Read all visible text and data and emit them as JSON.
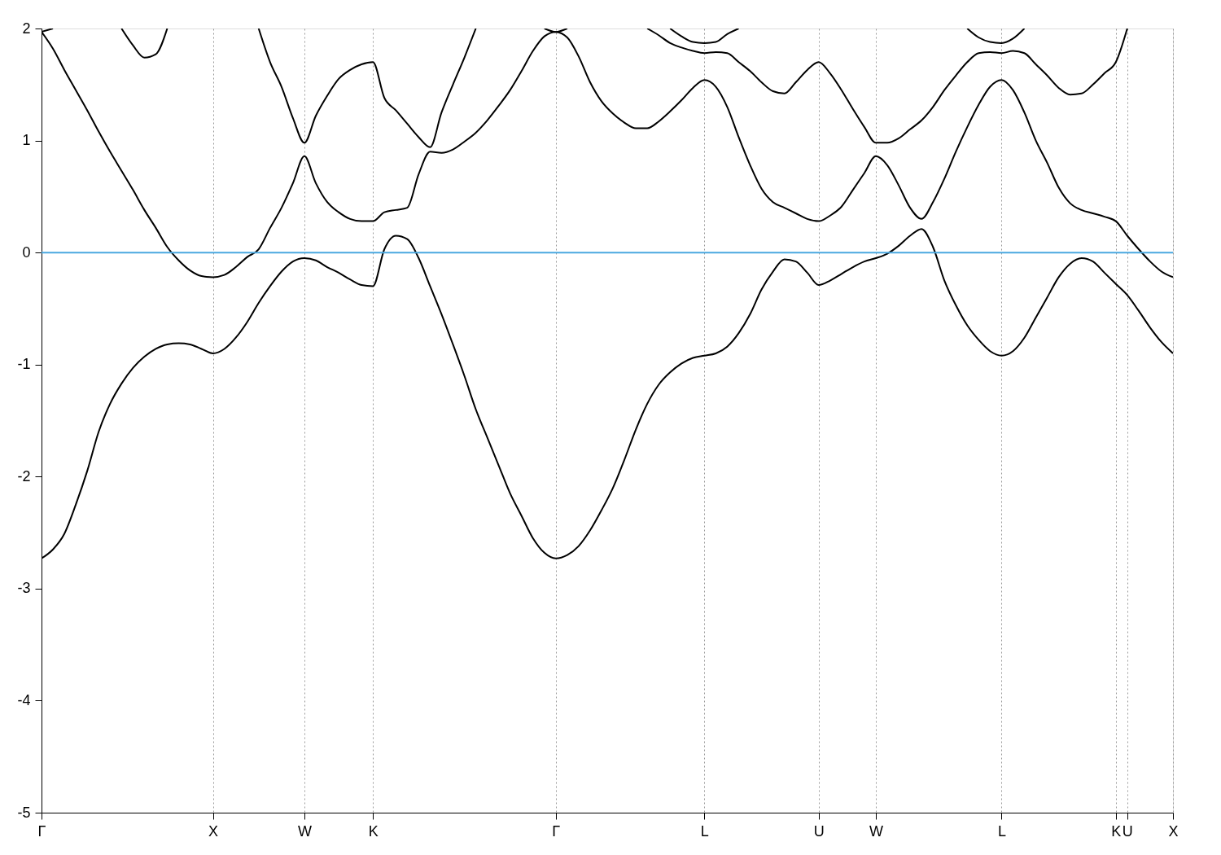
{
  "chart_data": {
    "type": "line",
    "categories": [
      "Γ",
      null,
      null,
      null,
      null,
      null,
      null,
      null,
      null,
      null,
      null,
      null,
      null,
      null,
      null,
      "X",
      null,
      null,
      null,
      null,
      null,
      null,
      null,
      "W",
      null,
      null,
      null,
      null,
      null,
      "K",
      null,
      null,
      null,
      null,
      null,
      null,
      null,
      null,
      null,
      null,
      null,
      null,
      null,
      null,
      null,
      "Γ",
      null,
      null,
      null,
      null,
      null,
      null,
      null,
      null,
      null,
      null,
      null,
      null,
      "L",
      null,
      null,
      null,
      null,
      null,
      null,
      null,
      null,
      null,
      "U",
      null,
      null,
      null,
      null,
      "W",
      null,
      null,
      null,
      null,
      null,
      null,
      null,
      null,
      null,
      null,
      "L",
      null,
      null,
      null,
      null,
      null,
      null,
      null,
      null,
      null,
      "K",
      "U",
      null,
      null,
      null,
      "X"
    ],
    "ylim": [
      -5,
      2
    ],
    "yticks": [
      -5,
      -4,
      -3,
      -2,
      -1,
      0,
      1,
      2
    ],
    "grid": "x",
    "ref_lines": [
      {
        "axis": "y",
        "value": 0,
        "color": "#4aa8e0"
      }
    ],
    "series": [
      {
        "color": "#000000",
        "values": [
          -2.73,
          -2.65,
          -2.51,
          -2.25,
          -1.95,
          -1.6,
          -1.35,
          -1.17,
          -1.03,
          -0.93,
          -0.86,
          -0.82,
          -0.81,
          -0.82,
          -0.86,
          -0.9,
          -0.86,
          -0.76,
          -0.62,
          -0.45,
          -0.3,
          -0.17,
          -0.08,
          -0.05,
          -0.07,
          -0.13,
          -0.18,
          -0.24,
          -0.29,
          -0.3,
          0.03,
          0.15,
          0.12,
          -0.05,
          -0.3,
          -0.55,
          -0.82,
          -1.1,
          -1.4,
          -1.65,
          -1.9,
          -2.15,
          -2.35,
          -2.55,
          -2.68,
          -2.73,
          -2.7,
          -2.62,
          -2.48,
          -2.3,
          -2.1,
          -1.85,
          -1.58,
          -1.35,
          -1.18,
          -1.07,
          -0.99,
          -0.94,
          -0.92,
          -0.9,
          -0.84,
          -0.72,
          -0.55,
          -0.33,
          -0.17,
          -0.06,
          -0.08,
          -0.18,
          -0.29,
          -0.25,
          -0.19,
          -0.13,
          -0.08,
          -0.05,
          -0.01,
          0.06,
          0.15,
          0.21,
          0.05,
          -0.25,
          -0.47,
          -0.65,
          -0.78,
          -0.88,
          -0.92,
          -0.88,
          -0.76,
          -0.58,
          -0.4,
          -0.22,
          -0.1,
          -0.05,
          -0.08,
          -0.18,
          -0.28,
          -0.38,
          -0.52,
          -0.67,
          -0.8,
          -0.9
        ]
      },
      {
        "color": "#000000",
        "values": [
          1.97,
          1.82,
          1.63,
          1.45,
          1.27,
          1.08,
          0.9,
          0.73,
          0.56,
          0.38,
          0.22,
          0.05,
          -0.07,
          -0.16,
          -0.21,
          -0.22,
          -0.2,
          -0.13,
          -0.04,
          0.03,
          0.22,
          0.4,
          0.62,
          0.86,
          0.62,
          0.45,
          0.36,
          0.3,
          0.28,
          0.28,
          0.36,
          0.38,
          0.4,
          0.7,
          0.9,
          0.89,
          0.92,
          0.99,
          1.07,
          1.18,
          1.31,
          1.45,
          1.62,
          1.8,
          1.93,
          1.97,
          1.92,
          1.75,
          1.52,
          1.35,
          1.24,
          1.16,
          1.11,
          1.11,
          1.17,
          1.26,
          1.36,
          1.47,
          1.54,
          1.48,
          1.3,
          1.03,
          0.78,
          0.57,
          0.45,
          0.4,
          0.35,
          0.3,
          0.28,
          0.33,
          0.41,
          0.56,
          0.71,
          0.86,
          0.78,
          0.6,
          0.4,
          0.3,
          0.45,
          0.66,
          0.9,
          1.12,
          1.32,
          1.48,
          1.54,
          1.45,
          1.25,
          1.0,
          0.8,
          0.58,
          0.44,
          0.38,
          0.35,
          0.32,
          0.28,
          0.15,
          0.03,
          -0.08,
          -0.17,
          -0.22
        ]
      },
      {
        "color": "#000000",
        "values": [
          1.97,
          2,
          null,
          null,
          null,
          null,
          null,
          null,
          null,
          null,
          null,
          null,
          null,
          null,
          null,
          null,
          null,
          null,
          null,
          null,
          null,
          null,
          null,
          null,
          null,
          null,
          null,
          null,
          null,
          null,
          null,
          null,
          null,
          null,
          null,
          null,
          null,
          null,
          null,
          null,
          null,
          null,
          null,
          null,
          null,
          null,
          null,
          null,
          null,
          null,
          null,
          null,
          null,
          null,
          null,
          null,
          null,
          null,
          null,
          null,
          null,
          null,
          null,
          null,
          null,
          null,
          null,
          null,
          null,
          null,
          null,
          null,
          null,
          null,
          null,
          null,
          null,
          null,
          null,
          null,
          null,
          null,
          null,
          null,
          null,
          null,
          null,
          null,
          null,
          null,
          null,
          null,
          null,
          null,
          null,
          null,
          null,
          null,
          null,
          null
        ]
      },
      {
        "color": "#000000",
        "values": [
          null,
          null,
          null,
          null,
          null,
          null,
          null,
          2,
          1.85,
          1.74,
          1.77,
          2,
          null,
          null,
          null,
          null,
          null,
          null,
          null,
          null,
          null,
          null,
          null,
          null,
          null,
          null,
          null,
          null,
          null,
          null,
          null,
          null,
          null,
          null,
          null,
          null,
          null,
          null,
          null,
          null,
          null,
          null,
          null,
          null,
          null,
          null,
          null,
          null,
          null,
          null,
          null,
          null,
          null,
          null,
          null,
          null,
          null,
          null,
          null,
          null,
          null,
          null,
          null,
          null,
          null,
          null,
          null,
          null,
          null,
          null,
          null,
          null,
          null,
          null,
          null,
          null,
          null,
          null,
          null,
          null,
          null,
          null,
          null,
          null,
          null,
          null,
          null,
          null,
          null,
          null,
          null,
          null,
          null,
          null,
          null,
          null,
          null,
          null,
          null,
          null
        ]
      },
      {
        "color": "#000000",
        "values": [
          null,
          null,
          null,
          null,
          null,
          null,
          null,
          null,
          null,
          null,
          null,
          null,
          null,
          null,
          null,
          null,
          null,
          null,
          null,
          2,
          1.7,
          1.48,
          1.2,
          0.98,
          1.22,
          1.4,
          1.55,
          1.63,
          1.68,
          1.7,
          1.38,
          1.27,
          1.15,
          1.03,
          0.94,
          1.25,
          1.5,
          1.74,
          2,
          null,
          null,
          null,
          null,
          null,
          null,
          null,
          null,
          null,
          null,
          null,
          null,
          null,
          null,
          null,
          null,
          null,
          null,
          null,
          null,
          null,
          null,
          null,
          null,
          null,
          null,
          null,
          null,
          null,
          null,
          null,
          null,
          null,
          null,
          null,
          null,
          null,
          null,
          null,
          null,
          null,
          null,
          null,
          null,
          null,
          null,
          null,
          null,
          null,
          null,
          null,
          null,
          null,
          null,
          null,
          null,
          null,
          null,
          null,
          null,
          null
        ]
      },
      {
        "color": "#000000",
        "values": [
          null,
          null,
          null,
          null,
          null,
          null,
          null,
          null,
          null,
          null,
          null,
          null,
          null,
          null,
          null,
          null,
          null,
          null,
          null,
          null,
          null,
          null,
          null,
          null,
          null,
          null,
          null,
          null,
          null,
          null,
          null,
          null,
          null,
          null,
          null,
          null,
          null,
          null,
          null,
          null,
          null,
          null,
          null,
          null,
          2,
          1.97,
          2,
          null,
          null,
          null,
          null,
          null,
          null,
          null,
          null,
          null,
          null,
          null,
          null,
          null,
          null,
          null,
          null,
          null,
          null,
          null,
          null,
          null,
          null,
          null,
          null,
          null,
          null,
          null,
          null,
          null,
          null,
          null,
          null,
          null,
          null,
          null,
          null,
          null,
          null,
          null,
          null,
          null,
          null,
          null,
          null,
          null,
          null,
          null,
          null,
          null,
          null,
          null,
          null,
          null
        ]
      },
      {
        "color": "#000000",
        "values": [
          null,
          null,
          null,
          null,
          null,
          null,
          null,
          null,
          null,
          null,
          null,
          null,
          null,
          null,
          null,
          null,
          null,
          null,
          null,
          null,
          null,
          null,
          null,
          null,
          null,
          null,
          null,
          null,
          null,
          null,
          null,
          null,
          null,
          null,
          null,
          null,
          null,
          null,
          null,
          null,
          null,
          null,
          null,
          null,
          null,
          null,
          null,
          null,
          null,
          null,
          null,
          null,
          null,
          2,
          1.94,
          1.87,
          1.83,
          1.8,
          1.78,
          1.79,
          1.78,
          1.7,
          1.62,
          1.52,
          1.44,
          1.42,
          1.52,
          1.63,
          1.7,
          1.6,
          1.45,
          1.28,
          1.12,
          0.98,
          0.98,
          1.02,
          1.1,
          1.18,
          1.3,
          1.45,
          1.58,
          1.7,
          1.78,
          1.79,
          1.78,
          1.8,
          1.78,
          1.68,
          1.58,
          1.47,
          1.41,
          1.42,
          1.5,
          1.6,
          1.7,
          2,
          null,
          null,
          null,
          null
        ]
      },
      {
        "color": "#000000",
        "values": [
          null,
          null,
          null,
          null,
          null,
          null,
          null,
          null,
          null,
          null,
          null,
          null,
          null,
          null,
          null,
          null,
          null,
          null,
          null,
          null,
          null,
          null,
          null,
          null,
          null,
          null,
          null,
          null,
          null,
          null,
          null,
          null,
          null,
          null,
          null,
          null,
          null,
          null,
          null,
          null,
          null,
          null,
          null,
          null,
          null,
          null,
          null,
          null,
          null,
          null,
          null,
          null,
          null,
          null,
          null,
          2,
          1.93,
          1.88,
          1.87,
          1.88,
          1.95,
          2,
          null,
          null,
          null,
          null,
          null,
          null,
          null,
          null,
          null,
          null,
          null,
          null,
          null,
          null,
          null,
          null,
          null,
          null,
          null,
          null,
          null,
          null,
          null,
          null,
          null,
          null,
          null,
          null,
          null,
          null,
          null,
          null,
          null,
          null,
          null,
          null,
          null,
          null
        ]
      },
      {
        "color": "#000000",
        "values": [
          null,
          null,
          null,
          null,
          null,
          null,
          null,
          null,
          null,
          null,
          null,
          null,
          null,
          null,
          null,
          null,
          null,
          null,
          null,
          null,
          null,
          null,
          null,
          null,
          null,
          null,
          null,
          null,
          null,
          null,
          null,
          null,
          null,
          null,
          null,
          null,
          null,
          null,
          null,
          null,
          null,
          null,
          null,
          null,
          null,
          null,
          null,
          null,
          null,
          null,
          null,
          null,
          null,
          null,
          null,
          null,
          null,
          null,
          null,
          null,
          null,
          null,
          null,
          null,
          null,
          null,
          null,
          null,
          null,
          null,
          null,
          null,
          null,
          null,
          null,
          null,
          null,
          null,
          null,
          null,
          null,
          2,
          1.92,
          1.88,
          1.87,
          1.91,
          2,
          null,
          null,
          null,
          null,
          null,
          null,
          null,
          null,
          null,
          null,
          null,
          null,
          null
        ]
      }
    ]
  }
}
